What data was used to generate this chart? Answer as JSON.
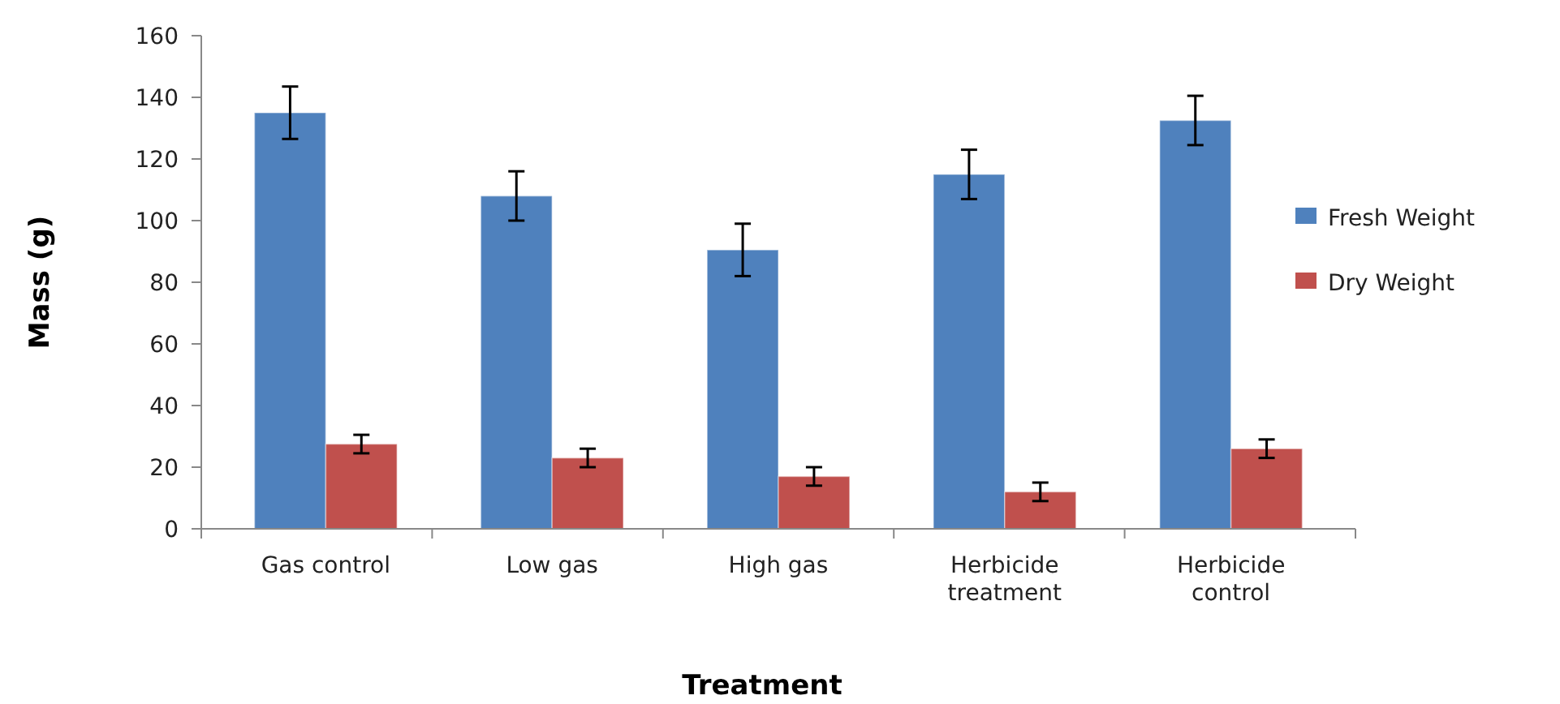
{
  "chart_data": {
    "type": "bar",
    "xlabel": "Treatment",
    "ylabel": "Mass (g)",
    "categories": [
      "Gas control",
      "Low gas",
      "High gas",
      "Herbicide treatment",
      "Herbicide control"
    ],
    "series": [
      {
        "name": "Fresh Weight",
        "color": "#4f81bd",
        "values": [
          135,
          108,
          90.5,
          115,
          132.5
        ],
        "errors": [
          8.5,
          8,
          8.5,
          8,
          8
        ]
      },
      {
        "name": "Dry Weight",
        "color": "#c0504d",
        "values": [
          27.5,
          23,
          17,
          12,
          26
        ],
        "errors": [
          3,
          3,
          3,
          3,
          3
        ]
      }
    ],
    "ylim": [
      0,
      160
    ],
    "yticks": [
      0,
      20,
      40,
      60,
      80,
      100,
      120,
      140,
      160
    ],
    "grid": false,
    "legend": "right"
  }
}
